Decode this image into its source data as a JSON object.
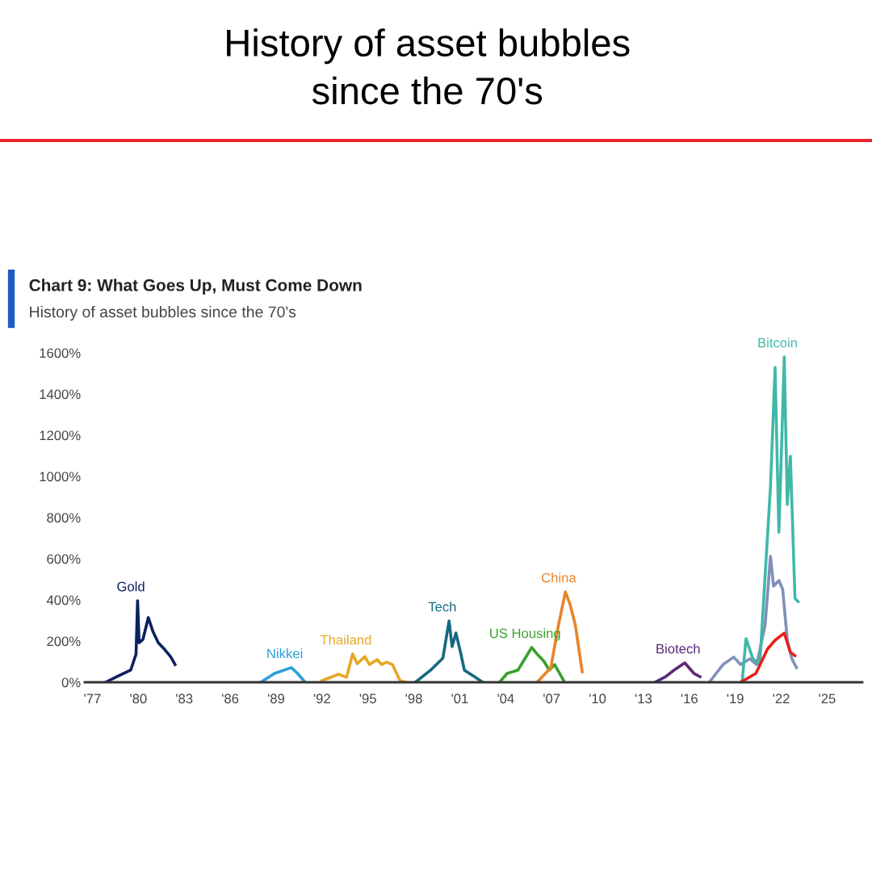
{
  "chart_data": {
    "type": "line",
    "title": "History of asset bubbles\nsince the 70's",
    "subtitle": "Chart 9: What Goes Up, Must Come Down",
    "annotations": [
      "History of asset bubbles since the 70's"
    ],
    "xlim": [
      1976.5,
      2027.3
    ],
    "xticks": [
      {
        "value": 1977,
        "label": "'77"
      },
      {
        "value": 1980,
        "label": "'80"
      },
      {
        "value": 1983,
        "label": "'83"
      },
      {
        "value": 1986,
        "label": "'86"
      },
      {
        "value": 1989,
        "label": "'89"
      },
      {
        "value": 1992,
        "label": "'92"
      },
      {
        "value": 1995,
        "label": "'95"
      },
      {
        "value": 1998,
        "label": "'98"
      },
      {
        "value": 2001,
        "label": "'01"
      },
      {
        "value": 2004,
        "label": "'04"
      },
      {
        "value": 2007,
        "label": "'07"
      },
      {
        "value": 2010,
        "label": "'10"
      },
      {
        "value": 2013,
        "label": "'13"
      },
      {
        "value": 2016,
        "label": "'16"
      },
      {
        "value": 2019,
        "label": "'19"
      },
      {
        "value": 2022,
        "label": "'22"
      },
      {
        "value": 2025,
        "label": "'25"
      }
    ],
    "ylim": [
      0,
      1600
    ],
    "yticks": [
      {
        "value": 0,
        "label": "0%"
      },
      {
        "value": 200,
        "label": "200%"
      },
      {
        "value": 400,
        "label": "400%"
      },
      {
        "value": 600,
        "label": "600%"
      },
      {
        "value": 800,
        "label": "800%"
      },
      {
        "value": 1000,
        "label": "1000%"
      },
      {
        "value": 1200,
        "label": "1200%"
      },
      {
        "value": 1400,
        "label": "1400%"
      },
      {
        "value": 1600,
        "label": "1600%"
      }
    ],
    "grid": false,
    "legend": false,
    "series": [
      {
        "name": "Gold",
        "color": "#0b2160",
        "x": [
          1977.85,
          1978.7,
          1979.5,
          1979.85,
          1979.95,
          1980.05,
          1980.3,
          1980.65,
          1980.95,
          1981.3,
          1981.65,
          1982.1,
          1982.4
        ],
        "values": [
          0,
          31,
          59,
          137,
          396,
          192,
          208,
          314,
          247,
          192,
          165,
          125,
          86
        ]
      },
      {
        "name": "Nikkei",
        "color": "#2a9fd8",
        "x": [
          1988.0,
          1988.9,
          1990.0,
          1990.4,
          1990.9
        ],
        "values": [
          0,
          43,
          71,
          43,
          0
        ]
      },
      {
        "name": "Thailand",
        "color": "#e5a823",
        "x": [
          1992.0,
          1993.1,
          1993.6,
          1994.0,
          1994.3,
          1994.8,
          1995.1,
          1995.6,
          1995.9,
          1996.2,
          1996.6,
          1997.1,
          1997.5
        ],
        "values": [
          8,
          39,
          24,
          137,
          90,
          125,
          86,
          110,
          86,
          98,
          86,
          8,
          0
        ]
      },
      {
        "name": "Tech",
        "color": "#146a80",
        "x": [
          1998.1,
          1999.1,
          1999.9,
          2000.3,
          2000.5,
          2000.75,
          2001.05,
          2001.3,
          2001.95,
          2002.5
        ],
        "values": [
          0,
          59,
          118,
          298,
          173,
          239,
          145,
          59,
          27,
          0
        ]
      },
      {
        "name": "US Housing",
        "color": "#3aa02c",
        "x": [
          2003.6,
          2004.1,
          2004.8,
          2005.7,
          2006.05,
          2006.5,
          2006.85,
          2007.2,
          2007.85
        ],
        "values": [
          0,
          43,
          59,
          169,
          137,
          102,
          59,
          86,
          0
        ]
      },
      {
        "name": "China",
        "color": "#e8852a",
        "x": [
          2006.05,
          2006.95,
          2007.45,
          2007.9,
          2008.2,
          2008.55,
          2009.0
        ],
        "values": [
          0,
          71,
          278,
          439,
          380,
          278,
          51
        ]
      },
      {
        "name": "Biotech",
        "color": "#5b2a76",
        "x": [
          2013.75,
          2014.45,
          2015.0,
          2015.7,
          2016.3,
          2016.7
        ],
        "values": [
          0,
          27,
          59,
          94,
          43,
          27
        ]
      },
      {
        "color": "#8090b8",
        "x": [
          2017.3,
          2018.2,
          2018.9,
          2019.35,
          2019.95,
          2020.4,
          2020.95,
          2021.3,
          2021.5,
          2021.85,
          2022.1,
          2022.4,
          2022.7,
          2023.0
        ],
        "values": [
          0,
          86,
          122,
          86,
          114,
          86,
          278,
          612,
          467,
          494,
          451,
          204,
          114,
          71
        ]
      },
      {
        "name": "Bitcoin",
        "color": "#40b8a8",
        "x": [
          2019.45,
          2019.7,
          2020.15,
          2020.6,
          2021.3,
          2021.6,
          2021.85,
          2022.0,
          2022.2,
          2022.4,
          2022.6,
          2022.9,
          2023.1
        ],
        "values": [
          0,
          212,
          114,
          86,
          949,
          1529,
          729,
          1082,
          1580,
          863,
          1098,
          408,
          392
        ]
      },
      {
        "color": "#e8201a",
        "x": [
          2019.35,
          2020.35,
          2021.1,
          2021.6,
          2022.2,
          2022.6,
          2022.9
        ],
        "values": [
          0,
          43,
          161,
          204,
          239,
          145,
          129
        ]
      }
    ]
  }
}
